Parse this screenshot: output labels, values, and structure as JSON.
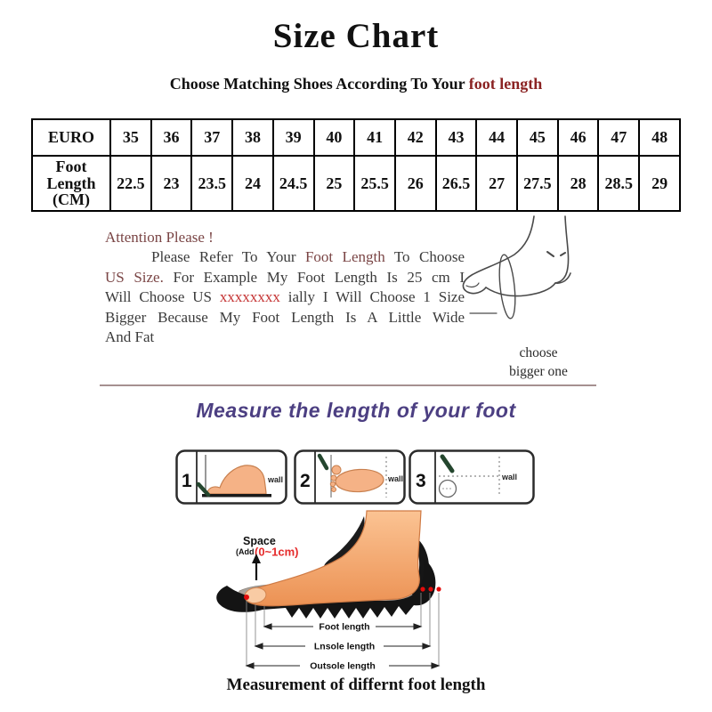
{
  "page": {
    "title": "Size Chart",
    "subtitle_prefix": "Choose Matching Shoes According To Your ",
    "subtitle_accent": "foot length"
  },
  "size_table": {
    "row1_label": "EURO",
    "row2_label": "Foot Length (CM)",
    "euro_sizes": [
      "35",
      "36",
      "37",
      "38",
      "39",
      "40",
      "41",
      "42",
      "43",
      "44",
      "45",
      "46",
      "47",
      "48"
    ],
    "foot_lengths_cm": [
      "22.5",
      "23",
      "23.5",
      "24",
      "24.5",
      "25",
      "25.5",
      "26",
      "26.5",
      "27",
      "27.5",
      "28",
      "28.5",
      "29"
    ]
  },
  "attention": {
    "heading": "Attention Please !",
    "line1_pre": "Please Refer To Your ",
    "line1_accent": "Foot Length",
    "line1_post": " To Choose",
    "line2_accent": "US Size.",
    "line2_post": " For Example My Foot Length Is 25 cm I",
    "line3_pre": "Will Choose US ",
    "line3_accent": "xxxxxxxx",
    "line3_post": " ially I Will Choose 1 Size",
    "line4": "Bigger Because My Foot Length Is A Little Wide",
    "line5": "And Fat"
  },
  "foot_note": {
    "line1": "choose",
    "line2": "bigger one"
  },
  "measure_heading": "Measure the length of your foot",
  "steps": [
    {
      "number": "1",
      "wall_label": "wall"
    },
    {
      "number": "2",
      "wall_label": "wall"
    },
    {
      "number": "3",
      "wall_label": "wall"
    }
  ],
  "diagram": {
    "space_label": "Space",
    "add_label": "(Add",
    "add_range": "(0~1cm)",
    "arrow_labels": [
      "Foot length",
      "Lnsole length",
      "Outsole length"
    ]
  },
  "caption": "Measurement of differnt foot length",
  "colors": {
    "accent_red": "#8b2323",
    "maroon": "#7a4545",
    "x_red": "#c53434",
    "purple": "#4c3f82",
    "divider": "#a59090",
    "skin": "#f5b286",
    "pen_green": "#24462e",
    "dot_red": "#e30b0b"
  }
}
